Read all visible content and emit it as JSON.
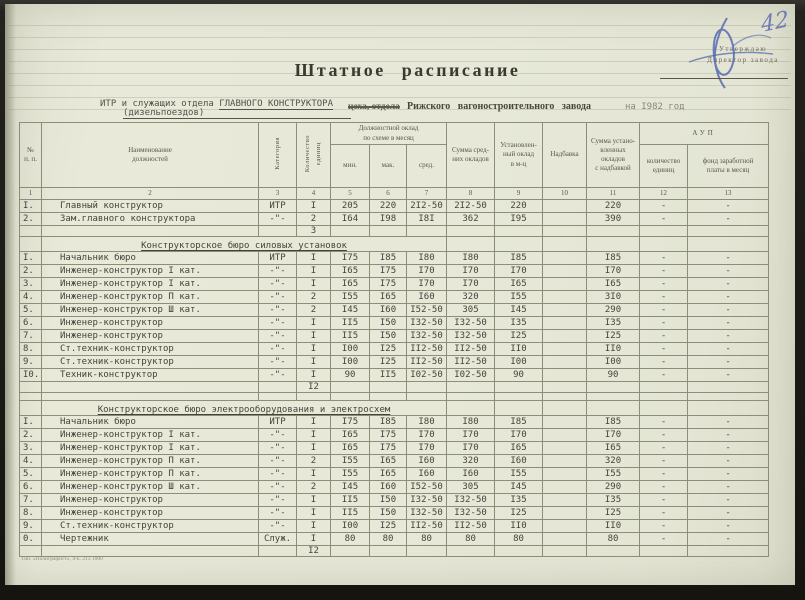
{
  "page": {
    "handwritten_page_number": "42",
    "approval": {
      "text": "Утверждаю\nДиректор завода"
    },
    "title": "Штатное  расписание",
    "subtitle": {
      "typed_left_prefix": "ИТР и служащих отдела ",
      "typed_left_emphasis": "ГЛАВНОГО КОНСТРУКТОРА",
      "typed_left_line2": "(дизельпоездов)",
      "printed_struck": "цеха, отдела",
      "printed_main": "Рижского вагоностроительного завода",
      "typed_year": "на I982 год"
    },
    "imprint": "Тип. «Полиграфист», 4-к. 213 1000",
    "ink_color": "#5b6cb4",
    "paper_color": "#e7e8d8"
  },
  "table": {
    "header": {
      "col_no": "№\nп. п.",
      "col_name": "Наименование\nдолжностей",
      "col_category": "Категория",
      "col_qty": "Количество\nединиц",
      "group_salary": "Должностной оклад\nпо схеме в месяц",
      "col_min": "мин.",
      "col_max": "мак.",
      "col_avg": "сред.",
      "col_sum_avg": "Сумма сред-\nних окладов",
      "col_set": "Установлен-\nный оклад\nв м-ц",
      "col_allowance": "Надбавка",
      "col_sum_set": "Сумма устано-\nвленных окладов\nс надбавкой",
      "group_aup": "АУП",
      "col_aup_qty": "количество\nединиц",
      "col_aup_fund": "фонд заработной\nплаты в месяц"
    },
    "col_numbers": [
      "1",
      "2",
      "3",
      "4",
      "5",
      "6",
      "7",
      "8",
      "9",
      "10",
      "11",
      "12",
      "13"
    ],
    "rows": [
      {
        "t": "data",
        "num": "I.",
        "name": "Главный конструктор",
        "cat": "ИТР",
        "qty": "I",
        "min": "205",
        "max": "220",
        "avg": "2I2-50",
        "sum_avg": "2I2-50",
        "set": "220",
        "allow": "",
        "sum_set": "220",
        "aup_qty": "-",
        "aup_fund": "-"
      },
      {
        "t": "data",
        "num": "2.",
        "name": "Зам.главного конструктора",
        "cat": "-\"-",
        "qty": "2",
        "min": "I64",
        "max": "I98",
        "avg": "I8I",
        "sum_avg": "362",
        "set": "I95",
        "allow": "",
        "sum_set": "390",
        "aup_qty": "-",
        "aup_fund": "-"
      },
      {
        "t": "subtotal",
        "qty": "3"
      },
      {
        "t": "section",
        "title": "Конструкторское бюро силовых установок"
      },
      {
        "t": "data",
        "num": "I.",
        "name": "Начальник бюро",
        "cat": "ИТР",
        "qty": "I",
        "min": "I75",
        "max": "I85",
        "avg": "I80",
        "sum_avg": "I80",
        "set": "I85",
        "allow": "",
        "sum_set": "I85",
        "aup_qty": "-",
        "aup_fund": "-"
      },
      {
        "t": "data",
        "num": "2.",
        "name": "Инженер-конструктор  I кат.",
        "cat": "-\"-",
        "qty": "I",
        "min": "I65",
        "max": "I75",
        "avg": "I70",
        "sum_avg": "I70",
        "set": "I70",
        "allow": "",
        "sum_set": "I70",
        "aup_qty": "-",
        "aup_fund": "-"
      },
      {
        "t": "data",
        "num": "3.",
        "name": "Инженер-конструктор I кат.",
        "cat": "-\"-",
        "qty": "I",
        "min": "I65",
        "max": "I75",
        "avg": "I70",
        "sum_avg": "I70",
        "set": "I65",
        "allow": "",
        "sum_set": "I65",
        "aup_qty": "-",
        "aup_fund": "-"
      },
      {
        "t": "data",
        "num": "4.",
        "name": "Инженер-конструктор П кат.",
        "cat": "-\"-",
        "qty": "2",
        "min": "I55",
        "max": "I65",
        "avg": "I60",
        "sum_avg": "320",
        "set": "I55",
        "allow": "",
        "sum_set": "3I0",
        "aup_qty": "-",
        "aup_fund": "-"
      },
      {
        "t": "data",
        "num": "5.",
        "name": "Инженер-конструктор Ш кат.",
        "cat": "-\"-",
        "qty": "2",
        "min": "I45",
        "max": "I60",
        "avg": "I52-50",
        "sum_avg": "305",
        "set": "I45",
        "allow": "",
        "sum_set": "290",
        "aup_qty": "-",
        "aup_fund": "-"
      },
      {
        "t": "data",
        "num": "6.",
        "name": "Инженер-конструктор",
        "cat": "-\"-",
        "qty": "I",
        "min": "II5",
        "max": "I50",
        "avg": "I32-50",
        "sum_avg": "I32-50",
        "set": "I35",
        "allow": "",
        "sum_set": "I35",
        "aup_qty": "-",
        "aup_fund": "-"
      },
      {
        "t": "data",
        "num": "7.",
        "name": "Инженер-конструктор",
        "cat": "-\"-",
        "qty": "I",
        "min": "II5",
        "max": "I50",
        "avg": "I32-50",
        "sum_avg": "I32-50",
        "set": "I25",
        "allow": "",
        "sum_set": "I25",
        "aup_qty": "-",
        "aup_fund": "-"
      },
      {
        "t": "data",
        "num": "8.",
        "name": "Ст.техник-конструктор",
        "cat": "-\"-",
        "qty": "I",
        "min": "I00",
        "max": "I25",
        "avg": "II2-50",
        "sum_avg": "II2-50",
        "set": "II0",
        "allow": "",
        "sum_set": "II0",
        "aup_qty": "-",
        "aup_fund": "-"
      },
      {
        "t": "data",
        "num": "9.",
        "name": "Ст.техник-конструктор",
        "cat": "-\"-",
        "qty": "I",
        "min": "I00",
        "max": "I25",
        "avg": "II2-50",
        "sum_avg": "II2-50",
        "set": "I00",
        "allow": "",
        "sum_set": "I00",
        "aup_qty": "-",
        "aup_fund": "-"
      },
      {
        "t": "data",
        "num": "I0.",
        "name": "Техник-конструктор",
        "cat": "-\"-",
        "qty": "I",
        "min": "90",
        "max": "II5",
        "avg": "I02-50",
        "sum_avg": "I02-50",
        "set": "90",
        "allow": "",
        "sum_set": "90",
        "aup_qty": "-",
        "aup_fund": "-"
      },
      {
        "t": "subtotal",
        "qty": "I2"
      },
      {
        "t": "spacer"
      },
      {
        "t": "section",
        "title": "Конструкторское бюро электрооборудования и электросхем"
      },
      {
        "t": "data",
        "num": "I.",
        "name": "Начальник бюро",
        "cat": "ИТР",
        "qty": "I",
        "min": "I75",
        "max": "I85",
        "avg": "I80",
        "sum_avg": "I80",
        "set": "I85",
        "allow": "",
        "sum_set": "I85",
        "aup_qty": "-",
        "aup_fund": "-"
      },
      {
        "t": "data",
        "num": "2.",
        "name": "Инженер-конструктор I кат.",
        "cat": "-\"-",
        "qty": "I",
        "min": "I65",
        "max": "I75",
        "avg": "I70",
        "sum_avg": "I70",
        "set": "I70",
        "allow": "",
        "sum_set": "I70",
        "aup_qty": "-",
        "aup_fund": "-"
      },
      {
        "t": "data",
        "num": "3.",
        "name": "Инженер-конструктор  I кат.",
        "cat": "-\"-",
        "qty": "I",
        "min": "I65",
        "max": "I75",
        "avg": "I70",
        "sum_avg": "I70",
        "set": "I65",
        "allow": "",
        "sum_set": "I65",
        "aup_qty": "-",
        "aup_fund": "-"
      },
      {
        "t": "data",
        "num": "4.",
        "name": "Инженер-конструктор П кат.",
        "cat": "-\"-",
        "qty": "2",
        "min": "I55",
        "max": "I65",
        "avg": "I60",
        "sum_avg": "320",
        "set": "I60",
        "allow": "",
        "sum_set": "320",
        "aup_qty": "-",
        "aup_fund": "-"
      },
      {
        "t": "data",
        "num": "5.",
        "name": "Инженер-конструктор П кат.",
        "cat": "-\"-",
        "qty": "I",
        "min": "I55",
        "max": "I65",
        "avg": "I60",
        "sum_avg": "I60",
        "set": "I55",
        "allow": "",
        "sum_set": "I55",
        "aup_qty": "-",
        "aup_fund": "-"
      },
      {
        "t": "data",
        "num": "6.",
        "name": "Инженер-конструктор Ш кат.",
        "cat": "-\"-",
        "qty": "2",
        "min": "I45",
        "max": "I60",
        "avg": "I52-50",
        "sum_avg": "305",
        "set": "I45",
        "allow": "",
        "sum_set": "290",
        "aup_qty": "-",
        "aup_fund": "-"
      },
      {
        "t": "data",
        "num": "7.",
        "name": "Инженер-конструктор",
        "cat": "-\"-",
        "qty": "I",
        "min": "II5",
        "max": "I50",
        "avg": "I32-50",
        "sum_avg": "I32-50",
        "set": "I35",
        "allow": "",
        "sum_set": "I35",
        "aup_qty": "-",
        "aup_fund": "-"
      },
      {
        "t": "data",
        "num": "8.",
        "name": "Инженер-конструктор",
        "cat": "-\"-",
        "qty": "I",
        "min": "II5",
        "max": "I50",
        "avg": "I32-50",
        "sum_avg": "I32-50",
        "set": "I25",
        "allow": "",
        "sum_set": "I25",
        "aup_qty": "-",
        "aup_fund": "-"
      },
      {
        "t": "data",
        "num": "9.",
        "name": "Ст.техник-конструктор",
        "cat": "-\"-",
        "qty": "I",
        "min": "I00",
        "max": "I25",
        "avg": "II2-50",
        "sum_avg": "II2-50",
        "set": "II0",
        "allow": "",
        "sum_set": "II0",
        "aup_qty": "-",
        "aup_fund": "-"
      },
      {
        "t": "data",
        "num": "0.",
        "name": "Чертежник",
        "cat": "Служ.",
        "qty": "I",
        "min": "80",
        "max": "80",
        "avg": "80",
        "sum_avg": "80",
        "set": "80",
        "allow": "",
        "sum_set": "80",
        "aup_qty": "-",
        "aup_fund": "-"
      },
      {
        "t": "subtotal",
        "qty": "I2"
      }
    ]
  }
}
